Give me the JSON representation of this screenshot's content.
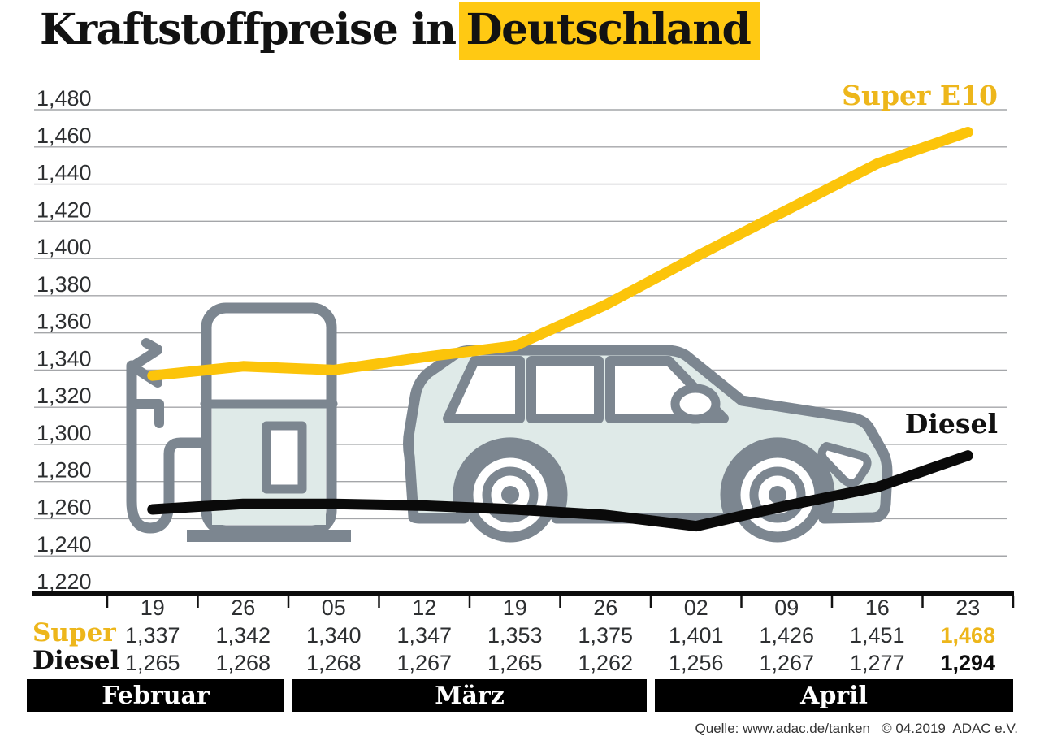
{
  "page": {
    "title_plain": "Kraftstoffpreise in",
    "title_highlight": "Deutschland",
    "source": "Quelle: www.adac.de/tanken   © 04.2019  ADAC e.V."
  },
  "chart_data": {
    "type": "line",
    "title": "Kraftstoffpreise in Deutschland",
    "x_dates": [
      "19",
      "26",
      "05",
      "12",
      "19",
      "26",
      "02",
      "09",
      "16",
      "23"
    ],
    "months": [
      {
        "label": "Februar",
        "from_tick": 0,
        "to_tick": 2
      },
      {
        "label": "März",
        "from_tick": 2,
        "to_tick": 6
      },
      {
        "label": "April",
        "from_tick": 6,
        "to_tick": 10
      }
    ],
    "ylim": [
      1.22,
      1.48
    ],
    "ytick_step": 0.02,
    "ytick_labels": [
      "1,480",
      "1,460",
      "1,440",
      "1,420",
      "1,400",
      "1,380",
      "1,360",
      "1,340",
      "1,320",
      "1,300",
      "1,280",
      "1,260",
      "1,240",
      "1,220"
    ],
    "grid": true,
    "legend_position": "inline-right",
    "series": [
      {
        "name": "Super E10",
        "color_key": "yellow",
        "values": [
          1.337,
          1.342,
          1.34,
          1.347,
          1.353,
          1.375,
          1.401,
          1.426,
          1.451,
          1.468
        ]
      },
      {
        "name": "Diesel",
        "color_key": "black",
        "values": [
          1.265,
          1.268,
          1.268,
          1.267,
          1.265,
          1.262,
          1.256,
          1.267,
          1.277,
          1.294
        ]
      }
    ]
  },
  "table": {
    "rows": [
      {
        "label": "Super",
        "values": [
          "1,337",
          "1,342",
          "1,340",
          "1,347",
          "1,353",
          "1,375",
          "1,401",
          "1,426",
          "1,451",
          "1,468"
        ],
        "emphasis_last": true
      },
      {
        "label": "Diesel",
        "values": [
          "1,265",
          "1,268",
          "1,268",
          "1,267",
          "1,265",
          "1,262",
          "1,256",
          "1,267",
          "1,277",
          "1,294"
        ],
        "emphasis_last": true
      }
    ]
  },
  "icons": {
    "pump": "fuel-pump-illustration",
    "car": "car-illustration"
  },
  "colors": {
    "accent_yellow": "#FCC40A",
    "accent_yellow_text": "#EDB61B",
    "line_black": "#0A0A0A",
    "grid_gray": "#A4A6A9",
    "text_gray": "#2D2F31",
    "illustration_stroke": "#7C8690",
    "illustration_fill": "#DFEAE8",
    "band_bg": "#000000",
    "band_text": "#FFFFFF",
    "highlight_bg": "#FFC913"
  }
}
